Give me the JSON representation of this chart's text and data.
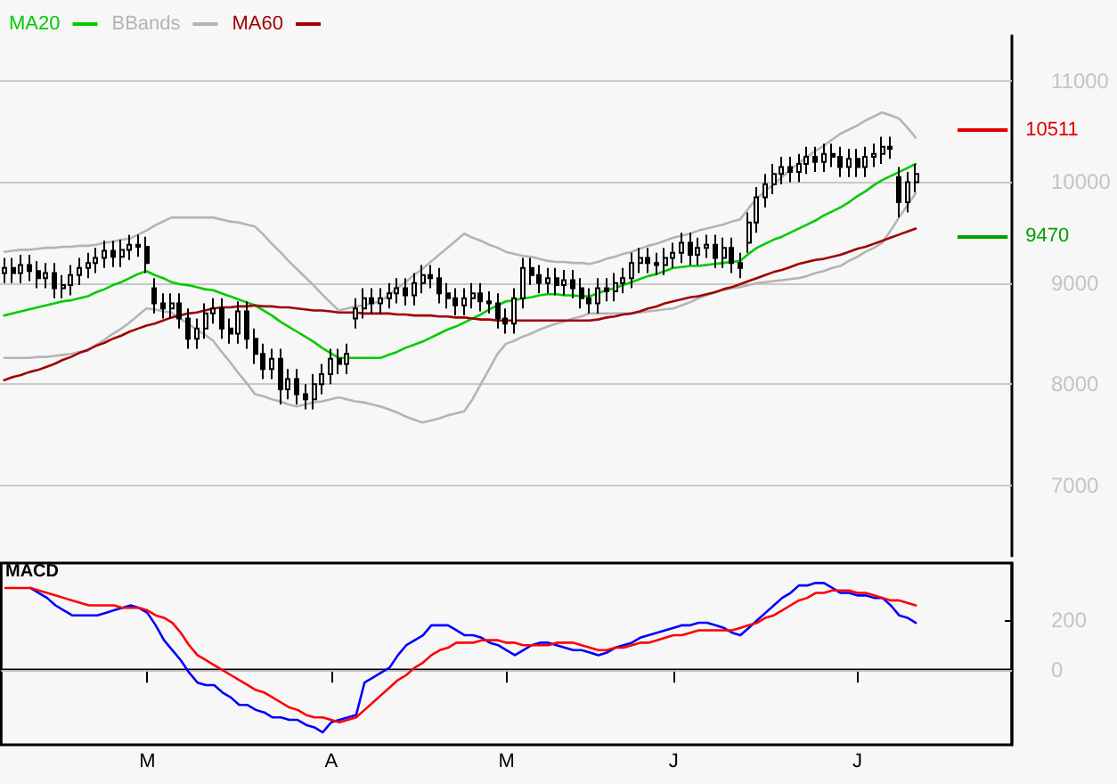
{
  "chart_data": [
    {
      "type": "candlestick",
      "legend": "top left",
      "grid": "y",
      "tick_labels": "y",
      "marker": "none",
      "ylim": [
        6300,
        11450
      ],
      "yticks": [
        7000,
        8000,
        9000,
        10000,
        11000
      ],
      "categories": [
        null,
        null,
        null,
        null,
        null,
        null,
        null,
        null,
        null,
        null,
        null,
        null,
        null,
        null,
        null,
        null,
        null,
        null,
        null,
        null,
        null,
        null,
        null,
        null,
        null,
        null,
        null,
        null,
        null,
        null,
        null,
        null,
        null,
        null,
        null,
        null,
        null,
        null,
        null,
        null,
        null,
        null,
        null,
        null,
        null,
        null,
        null,
        null,
        null,
        null,
        null,
        null,
        null,
        null,
        null,
        null,
        null,
        null,
        null,
        null,
        null,
        null,
        null,
        null,
        null,
        null,
        null,
        null,
        null,
        null,
        null,
        null,
        null,
        null,
        null,
        null,
        null,
        null,
        null,
        null,
        null,
        null,
        null,
        null,
        null,
        null,
        null,
        null,
        null,
        null,
        null,
        null,
        null,
        null,
        null,
        null,
        null,
        null,
        null,
        null,
        null,
        null,
        null,
        null,
        null,
        null,
        null,
        null,
        null,
        null,
        null,
        null,
        null,
        null,
        null,
        null,
        null,
        null,
        null,
        null,
        null
      ],
      "ohlc": [
        [
          9100,
          9250,
          9000,
          9150
        ],
        [
          9150,
          9250,
          9000,
          9100
        ],
        [
          9100,
          9280,
          9000,
          9180
        ],
        [
          9180,
          9280,
          9020,
          9120
        ],
        [
          9120,
          9220,
          8950,
          9050
        ],
        [
          9050,
          9200,
          8950,
          9100
        ],
        [
          9100,
          9200,
          8850,
          8950
        ],
        [
          8950,
          9080,
          8850,
          8980
        ],
        [
          8980,
          9180,
          8880,
          9080
        ],
        [
          9080,
          9250,
          8980,
          9150
        ],
        [
          9150,
          9300,
          9050,
          9200
        ],
        [
          9200,
          9350,
          9100,
          9250
        ],
        [
          9250,
          9420,
          9150,
          9320
        ],
        [
          9320,
          9420,
          9160,
          9260
        ],
        [
          9260,
          9430,
          9160,
          9330
        ],
        [
          9330,
          9480,
          9230,
          9380
        ],
        [
          9380,
          9480,
          9260,
          9360
        ],
        [
          9360,
          9460,
          9100,
          9200
        ],
        [
          8950,
          9050,
          8700,
          8800
        ],
        [
          8800,
          8900,
          8650,
          8750
        ],
        [
          8750,
          8900,
          8650,
          8800
        ],
        [
          8800,
          8900,
          8550,
          8650
        ],
        [
          8650,
          8750,
          8350,
          8450
        ],
        [
          8450,
          8650,
          8350,
          8550
        ],
        [
          8550,
          8800,
          8450,
          8700
        ],
        [
          8700,
          8850,
          8600,
          8750
        ],
        [
          8750,
          8850,
          8450,
          8550
        ],
        [
          8550,
          8650,
          8400,
          8500
        ],
        [
          8500,
          8820,
          8400,
          8720
        ],
        [
          8720,
          8820,
          8350,
          8450
        ],
        [
          8450,
          8550,
          8200,
          8300
        ],
        [
          8300,
          8400,
          8050,
          8150
        ],
        [
          8150,
          8350,
          8050,
          8250
        ],
        [
          8250,
          8350,
          7800,
          7950
        ],
        [
          7950,
          8150,
          7850,
          8050
        ],
        [
          8050,
          8150,
          7800,
          7900
        ],
        [
          7900,
          8000,
          7750,
          7850
        ],
        [
          7850,
          8100,
          7750,
          8000
        ],
        [
          8000,
          8200,
          7900,
          8100
        ],
        [
          8100,
          8350,
          8000,
          8250
        ],
        [
          8250,
          8350,
          8100,
          8200
        ],
        [
          8200,
          8400,
          8100,
          8300
        ],
        [
          8650,
          8850,
          8550,
          8750
        ],
        [
          8750,
          8950,
          8650,
          8850
        ],
        [
          8850,
          8950,
          8700,
          8800
        ],
        [
          8800,
          8950,
          8700,
          8850
        ],
        [
          8850,
          9000,
          8750,
          8900
        ],
        [
          8900,
          9050,
          8800,
          8950
        ],
        [
          8950,
          9050,
          8780,
          8880
        ],
        [
          8880,
          9100,
          8780,
          9000
        ],
        [
          9000,
          9180,
          8900,
          9080
        ],
        [
          9080,
          9180,
          8950,
          9050
        ],
        [
          9050,
          9150,
          8800,
          8900
        ],
        [
          8900,
          9000,
          8750,
          8850
        ],
        [
          8850,
          8950,
          8680,
          8780
        ],
        [
          8780,
          8950,
          8680,
          8850
        ],
        [
          8850,
          9000,
          8750,
          8900
        ],
        [
          8900,
          9000,
          8720,
          8820
        ],
        [
          8820,
          8920,
          8700,
          8800
        ],
        [
          8800,
          8900,
          8550,
          8650
        ],
        [
          8650,
          8750,
          8500,
          8600
        ],
        [
          8600,
          8950,
          8500,
          8850
        ],
        [
          8850,
          9250,
          8750,
          9150
        ],
        [
          9150,
          9250,
          8980,
          9080
        ],
        [
          9080,
          9180,
          8900,
          9000
        ],
        [
          9000,
          9150,
          8900,
          9050
        ],
        [
          9050,
          9150,
          8880,
          8980
        ],
        [
          8980,
          9130,
          8880,
          9030
        ],
        [
          9030,
          9130,
          8850,
          8950
        ],
        [
          8950,
          9050,
          8750,
          8850
        ],
        [
          8850,
          8950,
          8700,
          8800
        ],
        [
          8800,
          9050,
          8700,
          8950
        ],
        [
          8950,
          9050,
          8820,
          8920
        ],
        [
          8920,
          9100,
          8820,
          9000
        ],
        [
          9000,
          9150,
          8900,
          9050
        ],
        [
          9050,
          9300,
          8950,
          9200
        ],
        [
          9200,
          9350,
          9100,
          9250
        ],
        [
          9250,
          9350,
          9100,
          9200
        ],
        [
          9200,
          9300,
          9080,
          9180
        ],
        [
          9180,
          9350,
          9080,
          9250
        ],
        [
          9250,
          9400,
          9150,
          9300
        ],
        [
          9300,
          9500,
          9200,
          9400
        ],
        [
          9400,
          9500,
          9180,
          9280
        ],
        [
          9280,
          9450,
          9180,
          9350
        ],
        [
          9350,
          9480,
          9250,
          9380
        ],
        [
          9380,
          9480,
          9150,
          9250
        ],
        [
          9250,
          9450,
          9150,
          9350
        ],
        [
          9350,
          9450,
          9100,
          9200
        ],
        [
          9200,
          9300,
          9050,
          9150
        ],
        [
          9400,
          9700,
          9300,
          9600
        ],
        [
          9600,
          9950,
          9500,
          9850
        ],
        [
          9850,
          10080,
          9750,
          9980
        ],
        [
          9980,
          10180,
          9880,
          10080
        ],
        [
          10080,
          10250,
          9980,
          10150
        ],
        [
          10150,
          10250,
          10000,
          10100
        ],
        [
          10100,
          10280,
          10000,
          10180
        ],
        [
          10180,
          10350,
          10080,
          10250
        ],
        [
          10250,
          10350,
          10100,
          10200
        ],
        [
          10200,
          10380,
          10100,
          10280
        ],
        [
          10280,
          10380,
          10150,
          10250
        ],
        [
          10250,
          10350,
          10050,
          10150
        ],
        [
          10150,
          10330,
          10050,
          10230
        ],
        [
          10230,
          10330,
          10050,
          10150
        ],
        [
          10150,
          10350,
          10050,
          10250
        ],
        [
          10250,
          10380,
          10150,
          10280
        ],
        [
          10280,
          10450,
          10180,
          10350
        ],
        [
          10350,
          10450,
          10230,
          10330
        ],
        [
          10050,
          10150,
          9650,
          9800
        ],
        [
          9800,
          10100,
          9700,
          10000
        ],
        [
          10000,
          10180,
          9900,
          10080
        ],
        null,
        null,
        null,
        null,
        null,
        null,
        null,
        null,
        null,
        null,
        null
      ],
      "series": [
        {
          "type": "line",
          "name": "MA20",
          "color": "#00cc00",
          "values": [
            8680,
            8700,
            8720,
            8740,
            8760,
            8780,
            8800,
            8820,
            8830,
            8850,
            8870,
            8910,
            8940,
            8980,
            9010,
            9050,
            9090,
            9120,
            9080,
            9050,
            9010,
            8990,
            8980,
            8960,
            8940,
            8930,
            8900,
            8870,
            8840,
            8810,
            8780,
            8730,
            8680,
            8620,
            8570,
            8520,
            8470,
            8420,
            8360,
            8310,
            8260,
            8260,
            8260,
            8260,
            8260,
            8260,
            8290,
            8320,
            8360,
            8390,
            8420,
            8460,
            8500,
            8540,
            8570,
            8610,
            8650,
            8690,
            8740,
            8780,
            8820,
            8830,
            8850,
            8860,
            8880,
            8890,
            8890,
            8880,
            8880,
            8870,
            8870,
            8900,
            8930,
            8950,
            8980,
            9010,
            9040,
            9070,
            9090,
            9120,
            9150,
            9160,
            9170,
            9170,
            9180,
            9190,
            9200,
            9210,
            9220,
            9290,
            9350,
            9390,
            9430,
            9460,
            9500,
            9540,
            9580,
            9620,
            9670,
            9710,
            9750,
            9800,
            9860,
            9910,
            9970,
            10020,
            10060,
            10100,
            10140,
            10180,
            null,
            null,
            null,
            null,
            null,
            null,
            null,
            null,
            null,
            null,
            null
          ]
        },
        {
          "type": "line",
          "name": "BBands",
          "color": "#b4b4b4",
          "values": [
            9310,
            9320,
            9330,
            9330,
            9340,
            9350,
            9350,
            9360,
            9360,
            9370,
            9370,
            9380,
            9400,
            9410,
            9430,
            9440,
            9480,
            9520,
            9570,
            9610,
            9650,
            9650,
            9650,
            9650,
            9650,
            9650,
            9630,
            9610,
            9600,
            9580,
            9560,
            9480,
            9390,
            9310,
            9220,
            9140,
            9060,
            8980,
            8890,
            8810,
            8730,
            8750,
            8770,
            8780,
            8800,
            8820,
            8880,
            8950,
            9010,
            9080,
            9140,
            9210,
            9280,
            9350,
            9420,
            9490,
            9450,
            9420,
            9380,
            9350,
            9310,
            9290,
            9270,
            9260,
            9240,
            9220,
            9210,
            9210,
            9200,
            9200,
            9190,
            9210,
            9240,
            9260,
            9290,
            9310,
            9340,
            9370,
            9390,
            9420,
            9450,
            9470,
            9490,
            9520,
            9540,
            9560,
            9580,
            9610,
            9630,
            9740,
            9840,
            9910,
            9980,
            10050,
            10120,
            10190,
            10250,
            10310,
            10360,
            10420,
            10480,
            10520,
            10560,
            10610,
            10650,
            10690,
            10660,
            10630,
            10540,
            10440,
            null,
            null,
            null,
            null,
            null,
            null,
            null,
            null,
            null,
            null,
            null
          ]
        },
        {
          "type": "line",
          "color": "#b4b4b4",
          "values": [
            8260,
            8260,
            8260,
            8260,
            8270,
            8270,
            8280,
            8290,
            8300,
            8320,
            8330,
            8390,
            8440,
            8500,
            8550,
            8610,
            8680,
            8750,
            8740,
            8720,
            8710,
            8650,
            8600,
            8540,
            8490,
            8430,
            8320,
            8220,
            8110,
            8010,
            7900,
            7880,
            7850,
            7830,
            7800,
            7780,
            7800,
            7820,
            7830,
            7850,
            7870,
            7850,
            7830,
            7820,
            7800,
            7780,
            7750,
            7720,
            7680,
            7650,
            7620,
            7640,
            7660,
            7690,
            7710,
            7730,
            7850,
            8000,
            8150,
            8300,
            8400,
            8430,
            8470,
            8500,
            8540,
            8570,
            8600,
            8620,
            8650,
            8670,
            8700,
            8700,
            8700,
            8700,
            8700,
            8700,
            8710,
            8720,
            8730,
            8740,
            8750,
            8780,
            8810,
            8850,
            8880,
            8910,
            8930,
            8950,
            8960,
            8980,
            9000,
            9010,
            9020,
            9030,
            9040,
            9050,
            9070,
            9100,
            9120,
            9150,
            9170,
            9220,
            9260,
            9310,
            9350,
            9400,
            9520,
            9650,
            9770,
            9890,
            null,
            null,
            null,
            null,
            null,
            null,
            null,
            null,
            null,
            null,
            null
          ]
        },
        {
          "type": "line",
          "name": "MA60",
          "color": "#a00000",
          "values": [
            8040,
            8070,
            8090,
            8120,
            8140,
            8170,
            8200,
            8240,
            8270,
            8310,
            8340,
            8380,
            8410,
            8450,
            8480,
            8520,
            8550,
            8580,
            8600,
            8630,
            8660,
            8680,
            8700,
            8710,
            8730,
            8750,
            8760,
            8760,
            8770,
            8770,
            8780,
            8770,
            8770,
            8760,
            8760,
            8750,
            8740,
            8730,
            8730,
            8720,
            8710,
            8710,
            8710,
            8700,
            8700,
            8700,
            8700,
            8690,
            8690,
            8680,
            8680,
            8680,
            8670,
            8670,
            8660,
            8660,
            8650,
            8640,
            8640,
            8630,
            8630,
            8630,
            8630,
            8630,
            8630,
            8630,
            8630,
            8630,
            8630,
            8630,
            8630,
            8640,
            8660,
            8670,
            8690,
            8700,
            8720,
            8750,
            8770,
            8800,
            8820,
            8840,
            8860,
            8870,
            8890,
            8910,
            8940,
            8960,
            8990,
            9020,
            9050,
            9080,
            9110,
            9130,
            9160,
            9190,
            9210,
            9230,
            9240,
            9260,
            9280,
            9310,
            9340,
            9360,
            9390,
            9420,
            9450,
            9480,
            9510,
            9540,
            null,
            null,
            null,
            null,
            null,
            null,
            null,
            null,
            null,
            null,
            null
          ]
        }
      ],
      "ref_lines": [
        {
          "axis": "y",
          "value": 10511,
          "label": "10511",
          "color": "#e00000"
        },
        {
          "axis": "y",
          "value": 9470,
          "label": "9470",
          "color": "#00a000"
        }
      ]
    },
    {
      "type": "line",
      "title": "MACD",
      "marker": "none",
      "ylim": [
        -300,
        430
      ],
      "categories": [
        null,
        null,
        null,
        null,
        null,
        null,
        null,
        null,
        null,
        null,
        null,
        null,
        null,
        null,
        null,
        null,
        null,
        "M",
        null,
        null,
        null,
        null,
        null,
        null,
        null,
        null,
        null,
        null,
        null,
        null,
        null,
        null,
        null,
        null,
        null,
        null,
        null,
        null,
        null,
        "A",
        null,
        null,
        null,
        null,
        null,
        null,
        null,
        null,
        null,
        null,
        null,
        null,
        null,
        null,
        null,
        null,
        null,
        null,
        null,
        null,
        "M",
        null,
        null,
        null,
        null,
        null,
        null,
        null,
        null,
        null,
        null,
        null,
        null,
        null,
        null,
        null,
        null,
        null,
        null,
        null,
        "J",
        null,
        null,
        null,
        null,
        null,
        null,
        null,
        null,
        null,
        null,
        null,
        null,
        null,
        null,
        null,
        null,
        null,
        null,
        null,
        null,
        null,
        "J",
        null,
        null,
        null,
        null,
        null,
        null,
        null,
        null,
        null,
        null,
        null,
        null,
        null,
        null,
        null,
        null,
        null,
        null
      ],
      "yticks": [
        0,
        200
      ],
      "series": [
        {
          "color": "#0000ff",
          "values": [
            null,
            null,
            null,
            330,
            310,
            290,
            260,
            240,
            220,
            220,
            220,
            220,
            230,
            240,
            250,
            260,
            250,
            230,
            180,
            120,
            80,
            40,
            -10,
            -50,
            -60,
            -60,
            -90,
            -110,
            -140,
            -140,
            -160,
            -170,
            -190,
            -190,
            -200,
            -200,
            -220,
            -230,
            -250,
            -210,
            -200,
            -190,
            -180,
            -50,
            -30,
            -10,
            10,
            60,
            100,
            120,
            140,
            180,
            180,
            180,
            160,
            140,
            140,
            130,
            110,
            100,
            80,
            60,
            80,
            100,
            110,
            110,
            100,
            90,
            80,
            80,
            70,
            60,
            70,
            90,
            100,
            110,
            130,
            140,
            150,
            160,
            170,
            180,
            180,
            190,
            190,
            180,
            170,
            150,
            140,
            170,
            200,
            230,
            260,
            290,
            310,
            340,
            340,
            350,
            350,
            330,
            310,
            310,
            300,
            300,
            290,
            290,
            260,
            220,
            210,
            190,
            null,
            null,
            null,
            null,
            null,
            null,
            null,
            null,
            null,
            null,
            null
          ]
        },
        {
          "color": "#ff0000",
          "values": [
            330,
            330,
            330,
            330,
            320,
            310,
            300,
            290,
            280,
            270,
            260,
            260,
            260,
            260,
            250,
            250,
            250,
            240,
            220,
            210,
            190,
            150,
            100,
            60,
            40,
            20,
            0,
            -20,
            -40,
            -60,
            -80,
            -90,
            -110,
            -130,
            -150,
            -160,
            -180,
            -190,
            -190,
            -200,
            -210,
            -200,
            -190,
            -160,
            -130,
            -100,
            -70,
            -40,
            -20,
            10,
            30,
            60,
            80,
            90,
            110,
            110,
            110,
            120,
            120,
            120,
            110,
            110,
            100,
            100,
            100,
            100,
            110,
            110,
            110,
            100,
            90,
            80,
            80,
            90,
            90,
            100,
            110,
            110,
            120,
            130,
            140,
            140,
            150,
            160,
            160,
            160,
            160,
            160,
            170,
            180,
            190,
            210,
            220,
            240,
            260,
            280,
            290,
            310,
            310,
            320,
            320,
            320,
            310,
            310,
            300,
            290,
            280,
            280,
            270,
            260,
            null,
            null,
            null,
            null,
            null,
            null,
            null,
            null,
            null,
            null,
            null
          ]
        }
      ],
      "ref_lines": [
        {
          "axis": "y",
          "value": 0,
          "color": "#c0c0c0"
        }
      ]
    }
  ]
}
